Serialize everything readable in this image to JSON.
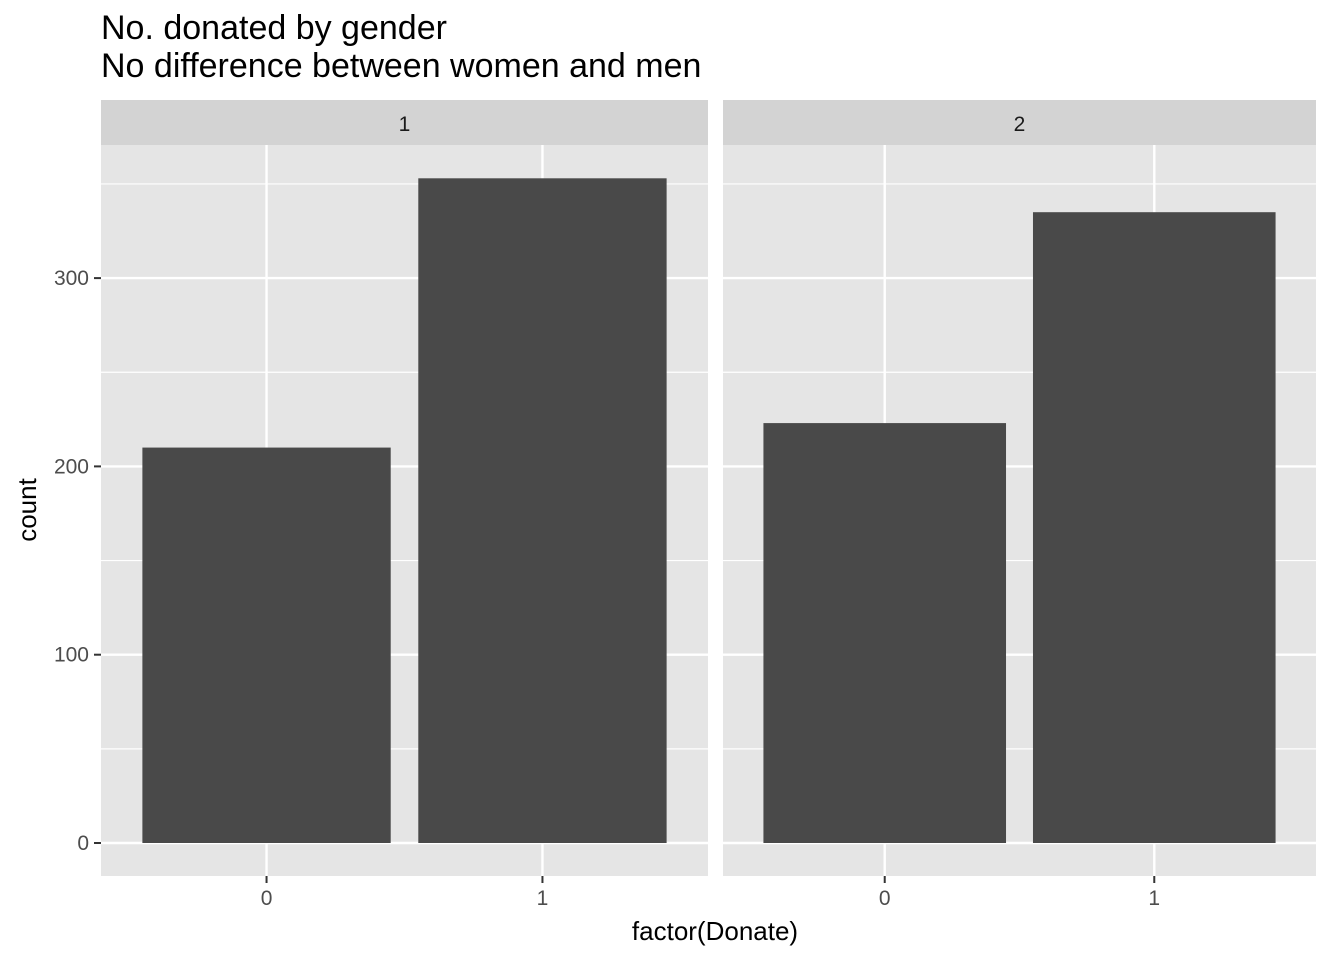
{
  "chart_data": {
    "type": "bar",
    "title": "No. donated by gender",
    "subtitle": "No difference between women and men",
    "xlabel": "factor(Donate)",
    "ylabel": "count",
    "categories": [
      "0",
      "1"
    ],
    "ylim": [
      0,
      372
    ],
    "yticks": [
      0,
      100,
      200,
      300
    ],
    "grid": true,
    "legend": "none",
    "panels": [
      {
        "label": "1",
        "values": [
          210,
          353
        ]
      },
      {
        "label": "2",
        "values": [
          223,
          335
        ]
      }
    ],
    "colors": {
      "bar": "#494949",
      "panel_background": "#e5e5e5",
      "strip_background": "#d3d3d3",
      "grid": "#ffffff"
    }
  }
}
